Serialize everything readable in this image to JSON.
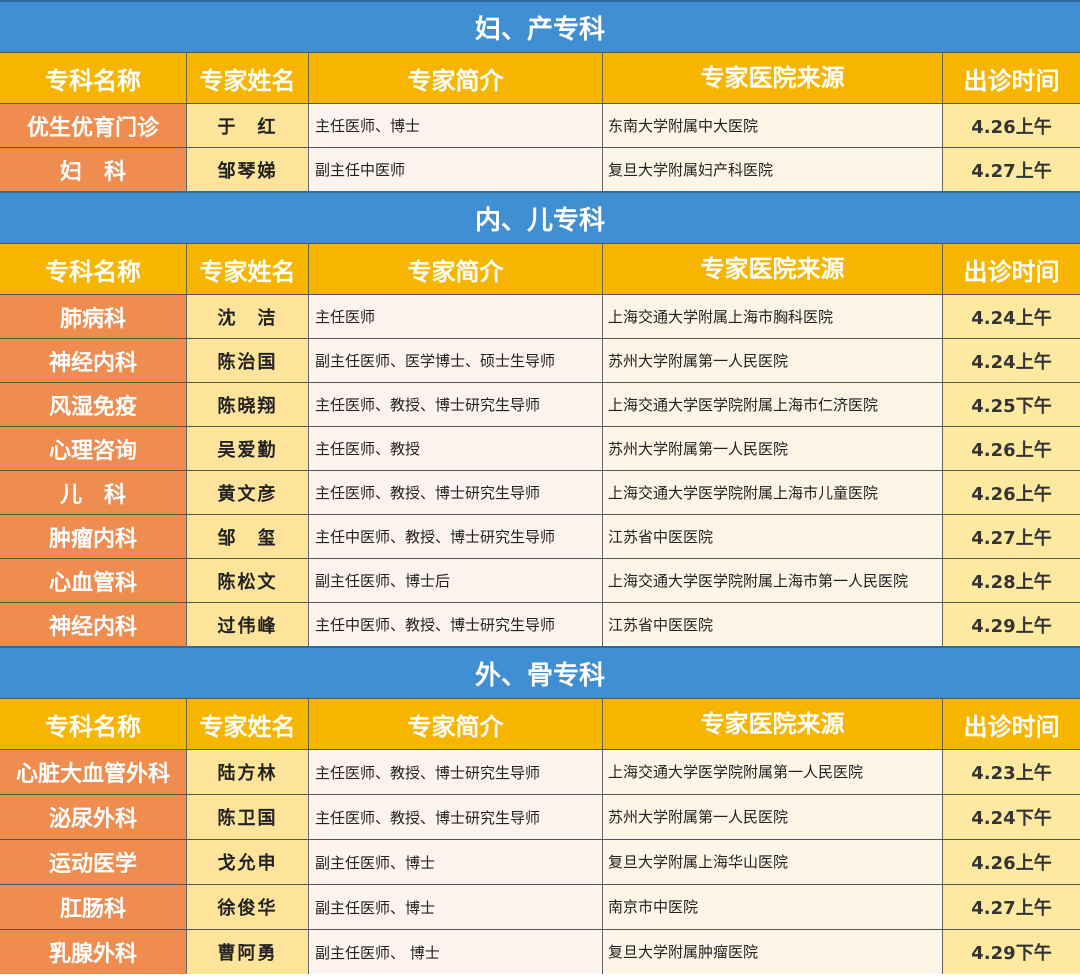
{
  "colors": {
    "section_bar": "#3f8fd2",
    "header": "#f8b500",
    "dept_col": "#ef8c50",
    "name_col": "#fde49a",
    "time_col": "#fde9a0"
  },
  "headers": [
    "专科名称",
    "专家姓名",
    "专家简介",
    "专家医院来源",
    "出诊时间"
  ],
  "sections": [
    {
      "title": "妇、产专科",
      "rows": [
        [
          "优生优育门诊",
          "于　红",
          "主任医师、博士",
          "东南大学附属中大医院",
          "4.26上午"
        ],
        [
          "妇　科",
          "邹琴娣",
          "副主任中医师",
          "复旦大学附属妇产科医院",
          "4.27上午"
        ]
      ]
    },
    {
      "title": "内、儿专科",
      "rows": [
        [
          "肺病科",
          "沈　洁",
          "主任医师",
          "上海交通大学附属上海市胸科医院",
          "4.24上午"
        ],
        [
          "神经内科",
          "陈治国",
          "副主任医师、医学博士、硕士生导师",
          "苏州大学附属第一人民医院",
          "4.24上午"
        ],
        [
          "风湿免疫",
          "陈晓翔",
          "主任医师、教授、博士研究生导师",
          "上海交通大学医学院附属上海市仁济医院",
          "4.25下午"
        ],
        [
          "心理咨询",
          "吴爱勤",
          "主任医师、教授",
          "苏州大学附属第一人民医院",
          "4.26上午"
        ],
        [
          "儿　科",
          "黄文彦",
          "主任医师、教授、博士研究生导师",
          "上海交通大学医学院附属上海市儿童医院",
          "4.26上午"
        ],
        [
          "肿瘤内科",
          "邹　玺",
          "主任中医师、教授、博士研究生导师",
          "江苏省中医医院",
          "4.27上午"
        ],
        [
          "心血管科",
          "陈松文",
          "副主任医师、博士后",
          "上海交通大学医学院附属上海市第一人民医院",
          "4.28上午"
        ],
        [
          "神经内科",
          "过伟峰",
          "主任中医师、教授、博士研究生导师",
          "江苏省中医医院",
          "4.29上午"
        ]
      ]
    },
    {
      "title": "外、骨专科",
      "rows": [
        [
          "心脏大血管外科",
          "陆方林",
          "主任医师、教授、博士研究生导师",
          "上海交通大学医学院附属第一人民医院",
          "4.23上午"
        ],
        [
          "泌尿外科",
          "陈卫国",
          "主任医师、教授、博士研究生导师",
          "苏州大学附属第一人民医院",
          "4.24下午"
        ],
        [
          "运动医学",
          "戈允申",
          "副主任医师、博士",
          "复旦大学附属上海华山医院",
          "4.26上午"
        ],
        [
          "肛肠科",
          "徐俊华",
          "副主任医师、博士",
          "南京市中医院",
          "4.27上午"
        ],
        [
          "乳腺外科",
          "曹阿勇",
          "副主任医师、 博士",
          "复旦大学附属肿瘤医院",
          "4.29下午"
        ]
      ]
    }
  ]
}
